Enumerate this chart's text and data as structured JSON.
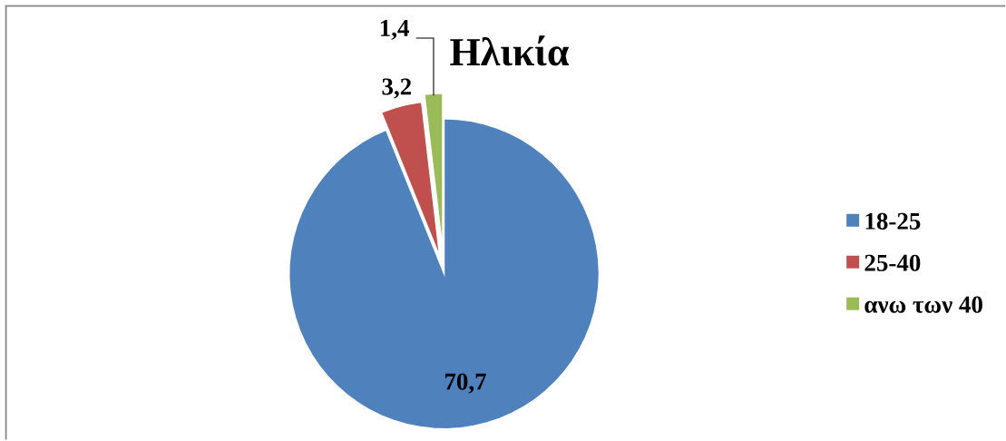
{
  "chart_data": {
    "type": "pie",
    "title": "Ηλικία",
    "categories": [
      "18-25",
      "25-40",
      "ανω των 40"
    ],
    "values": [
      70.7,
      3.2,
      1.4
    ],
    "colors": [
      "#4f81bd",
      "#c0504d",
      "#9bbb59"
    ],
    "value_labels": [
      "70,7",
      "3,2",
      "1,4"
    ],
    "legend": "right"
  }
}
